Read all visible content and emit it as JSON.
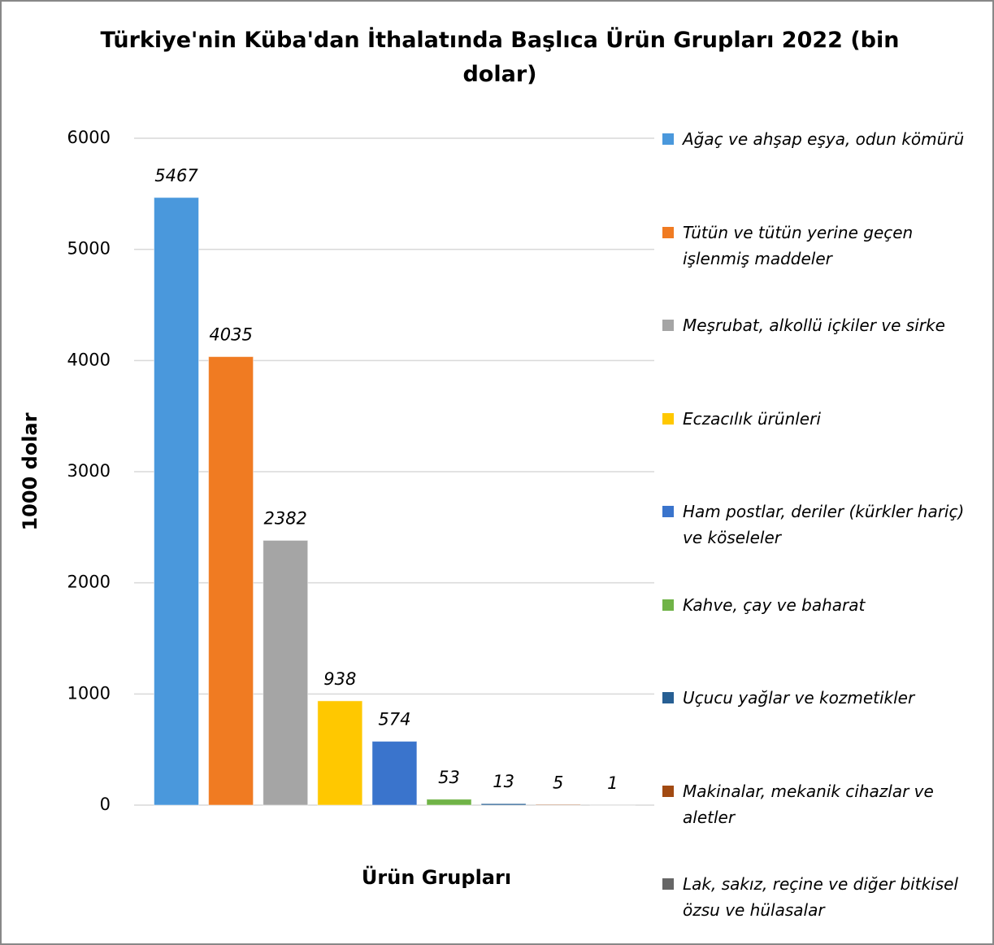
{
  "chart_data": {
    "type": "bar",
    "title": "Türkiye'nin Küba'dan İthalatında Başlıca Ürün Grupları 2022 (bin dolar)",
    "y_label": "1000 dolar",
    "x_label": "Ürün Grupları",
    "categories": [
      "Ağaç ve ahşap eşya, odun kömürü",
      "Tütün ve tütün yerine geçen işlenmiş maddeler",
      "Meşrubat, alkollü içkiler ve sirke",
      "Eczacılık ürünleri",
      "Ham postlar, deriler (kürkler hariç) ve köseleler",
      "Kahve, çay ve baharat",
      "Uçucu yağlar ve kozmetikler",
      "Makinalar, mekanik cihazlar ve aletler",
      "Lak, sakız, reçine ve diğer bitkisel özsu ve hülasalar"
    ],
    "values": [
      5467,
      4035,
      2382,
      938,
      574,
      53,
      13,
      5,
      1
    ],
    "colors": [
      "#4a98dc",
      "#f07b22",
      "#a5a5a5",
      "#ffc800",
      "#3a74cc",
      "#70b347",
      "#275f93",
      "#a24a12",
      "#666666"
    ],
    "ylim": [
      0,
      6000
    ],
    "yticks": [
      0,
      1000,
      2000,
      3000,
      4000,
      5000,
      6000
    ],
    "grid": true,
    "legend": "right"
  }
}
